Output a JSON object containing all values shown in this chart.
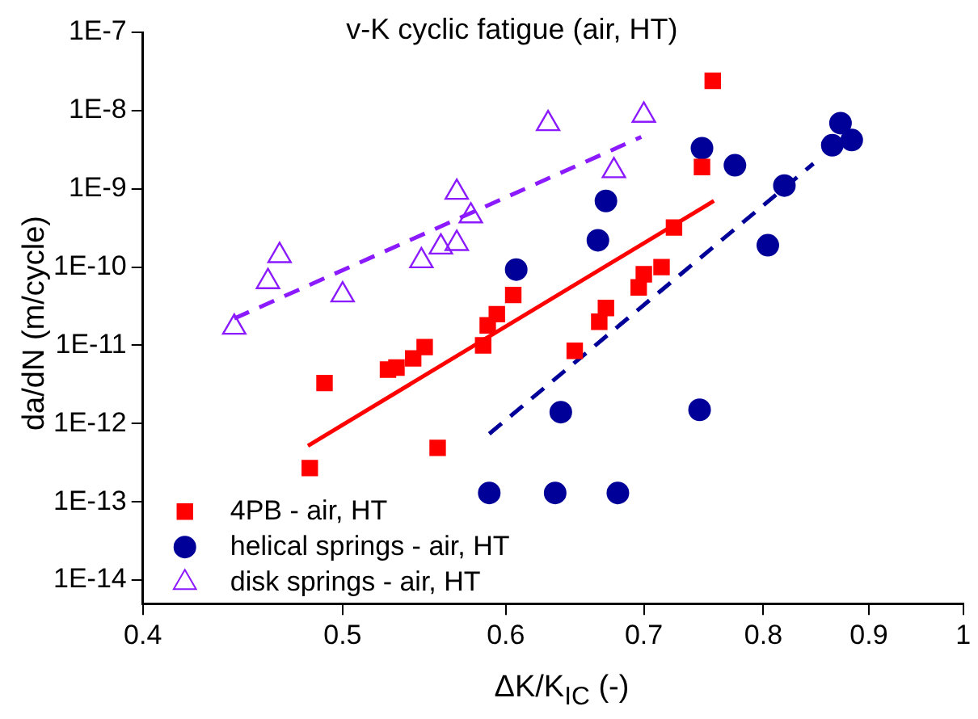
{
  "chart_data": {
    "type": "scatter",
    "title": "v-K cyclic fatigue (air, HT)",
    "xlabel": "ΔK/K$_{IC}$ (-)",
    "ylabel": "da/dN (m/cycle)",
    "log": "xy",
    "xlim": [
      0.4,
      1
    ],
    "xticks": [
      0.4,
      0.5,
      0.6,
      0.7,
      0.8,
      0.9,
      1
    ],
    "ylim": [
      5e-15,
      1e-07
    ],
    "yticks": [
      {
        "value": 1e-14,
        "label": "1E-14"
      },
      {
        "value": 1e-13,
        "label": "1E-13"
      },
      {
        "value": 1e-12,
        "label": "1E-12"
      },
      {
        "value": 1e-11,
        "label": "1E-11"
      },
      {
        "value": 1e-10,
        "label": "1E-10"
      },
      {
        "value": 1e-09,
        "label": "1E-9"
      },
      {
        "value": 1e-08,
        "label": "1E-8"
      },
      {
        "value": 1e-07,
        "label": "1E-7"
      }
    ],
    "grid": false,
    "legend": "bottom left",
    "series": [
      {
        "name": "4PB - air, HT",
        "color": "#ff0000",
        "marker": "square",
        "x": [
          0.482,
          0.49,
          0.526,
          0.531,
          0.539,
          0.541,
          0.548,
          0.556,
          0.585,
          0.588,
          0.594,
          0.605,
          0.648,
          0.666,
          0.671,
          0.696,
          0.7,
          0.714,
          0.724,
          0.747,
          0.756
        ],
        "values": [
          2.7e-13,
          3.3e-12,
          4.9e-12,
          5.2e-12,
          null,
          6.8e-12,
          9.5e-12,
          4.9e-13,
          1e-11,
          1.8e-11,
          2.5e-11,
          4.4e-11,
          8.5e-12,
          2e-11,
          3e-11,
          5.5e-11,
          8.1e-11,
          1e-10,
          3.2e-10,
          1.9e-09,
          2.4e-08
        ]
      },
      {
        "name": "helical springs - air, HT",
        "color": "#000099",
        "marker": "circle",
        "x": [
          0.589,
          0.634,
          0.68,
          0.638,
          0.745,
          0.607,
          0.665,
          0.671,
          0.747,
          0.775,
          0.804,
          0.819,
          0.864,
          0.872,
          0.883
        ],
        "values": [
          1.3e-13,
          1.3e-13,
          1.3e-13,
          1.4e-12,
          1.5e-12,
          9.3e-11,
          2.2e-10,
          7e-10,
          3.3e-09,
          2e-09,
          1.9e-10,
          1.1e-09,
          3.6e-09,
          6.9e-09,
          4.2e-09
        ]
      },
      {
        "name": "disk springs - air, HT",
        "color": "#8b1aff",
        "marker": "triangle",
        "x": [
          0.443,
          0.46,
          0.466,
          0.5,
          0.546,
          0.558,
          0.568,
          0.568,
          0.577,
          0.629,
          0.677,
          0.7
        ],
        "values": [
          1.7e-11,
          6.5e-11,
          1.4e-10,
          4.4e-11,
          1.2e-10,
          1.8e-10,
          2e-10,
          9e-10,
          4.5e-10,
          6.8e-09,
          1.7e-09,
          8.7e-09
        ]
      },
      {
        "type": "line",
        "color": "#ff0000",
        "line_style": "solid",
        "marker": "none",
        "x": [
          0.481,
          0.757
        ],
        "values": [
          5.2e-13,
          7e-10
        ]
      },
      {
        "type": "line",
        "color": "#000099",
        "line_style": "dashed",
        "marker": "none",
        "x": [
          0.589,
          0.846
        ],
        "values": [
          7.4e-13,
          2.1e-09
        ]
      },
      {
        "type": "line",
        "color": "#8b1aff",
        "line_style": "dashed",
        "marker": "none",
        "x": [
          0.443,
          0.698
        ],
        "values": [
          2.2e-11,
          4.6e-09
        ]
      }
    ]
  }
}
